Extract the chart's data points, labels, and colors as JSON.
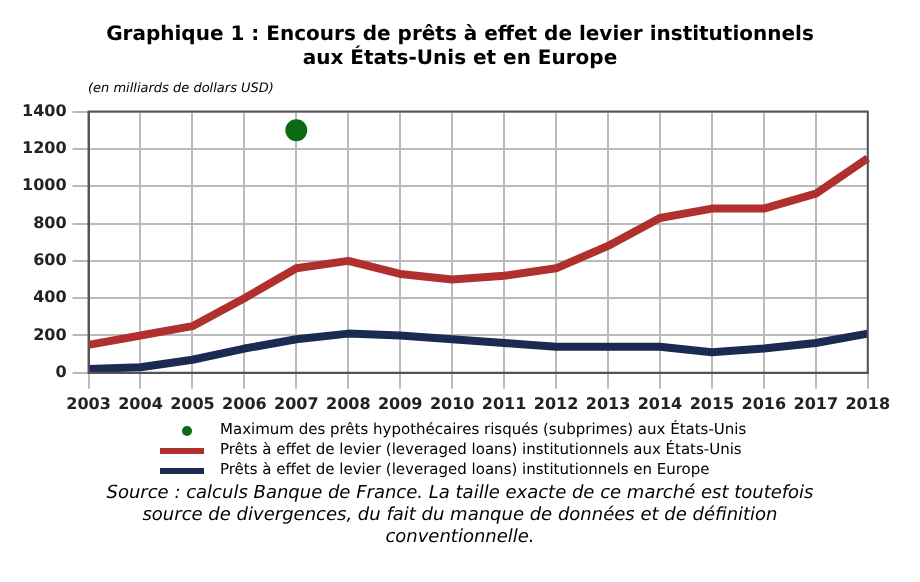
{
  "chart_data": {
    "type": "line",
    "title": "Graphique 1 : Encours de prêts à effet de levier institutionnels aux États-Unis et en Europe",
    "ylabel": "(en milliards de dollars USD)",
    "categories": [
      "2003",
      "2004",
      "2005",
      "2006",
      "2007",
      "2008",
      "2009",
      "2010",
      "2011",
      "2012",
      "2013",
      "2014",
      "2015",
      "2016",
      "2017",
      "2018"
    ],
    "series": [
      {
        "name": "Maximum des prêts hypothécaires risqués (subprimes) aux États-Unis",
        "type": "scatter",
        "color": "#0b6b12",
        "values": [
          null,
          null,
          null,
          null,
          1300,
          null,
          null,
          null,
          null,
          null,
          null,
          null,
          null,
          null,
          null,
          null
        ],
        "marker": "circle"
      },
      {
        "name": "Prêts à effet de levier (leveraged loans) institutionnels aux États-Unis",
        "type": "line",
        "color": "#b0302e",
        "values": [
          150,
          200,
          250,
          400,
          560,
          600,
          530,
          500,
          520,
          560,
          680,
          830,
          880,
          880,
          960,
          1150
        ]
      },
      {
        "name": "Prêts à effet de levier (leveraged loans) institutionnels en Europe",
        "type": "line",
        "color": "#1a2a52",
        "values": [
          20,
          30,
          70,
          130,
          180,
          210,
          200,
          180,
          160,
          140,
          140,
          140,
          110,
          130,
          160,
          210
        ]
      }
    ],
    "ylim": [
      0,
      1400
    ],
    "yticks": [
      0,
      200,
      400,
      600,
      800,
      1000,
      1200,
      1400
    ],
    "grid": true,
    "legend": "bottom",
    "marker": "none",
    "line_style": "solid",
    "annotations": [
      "Source : calculs Banque de France. La taille exacte de ce marché est toutefois source de divergences, du fait du manque de données et de définition conventionnelle."
    ]
  }
}
